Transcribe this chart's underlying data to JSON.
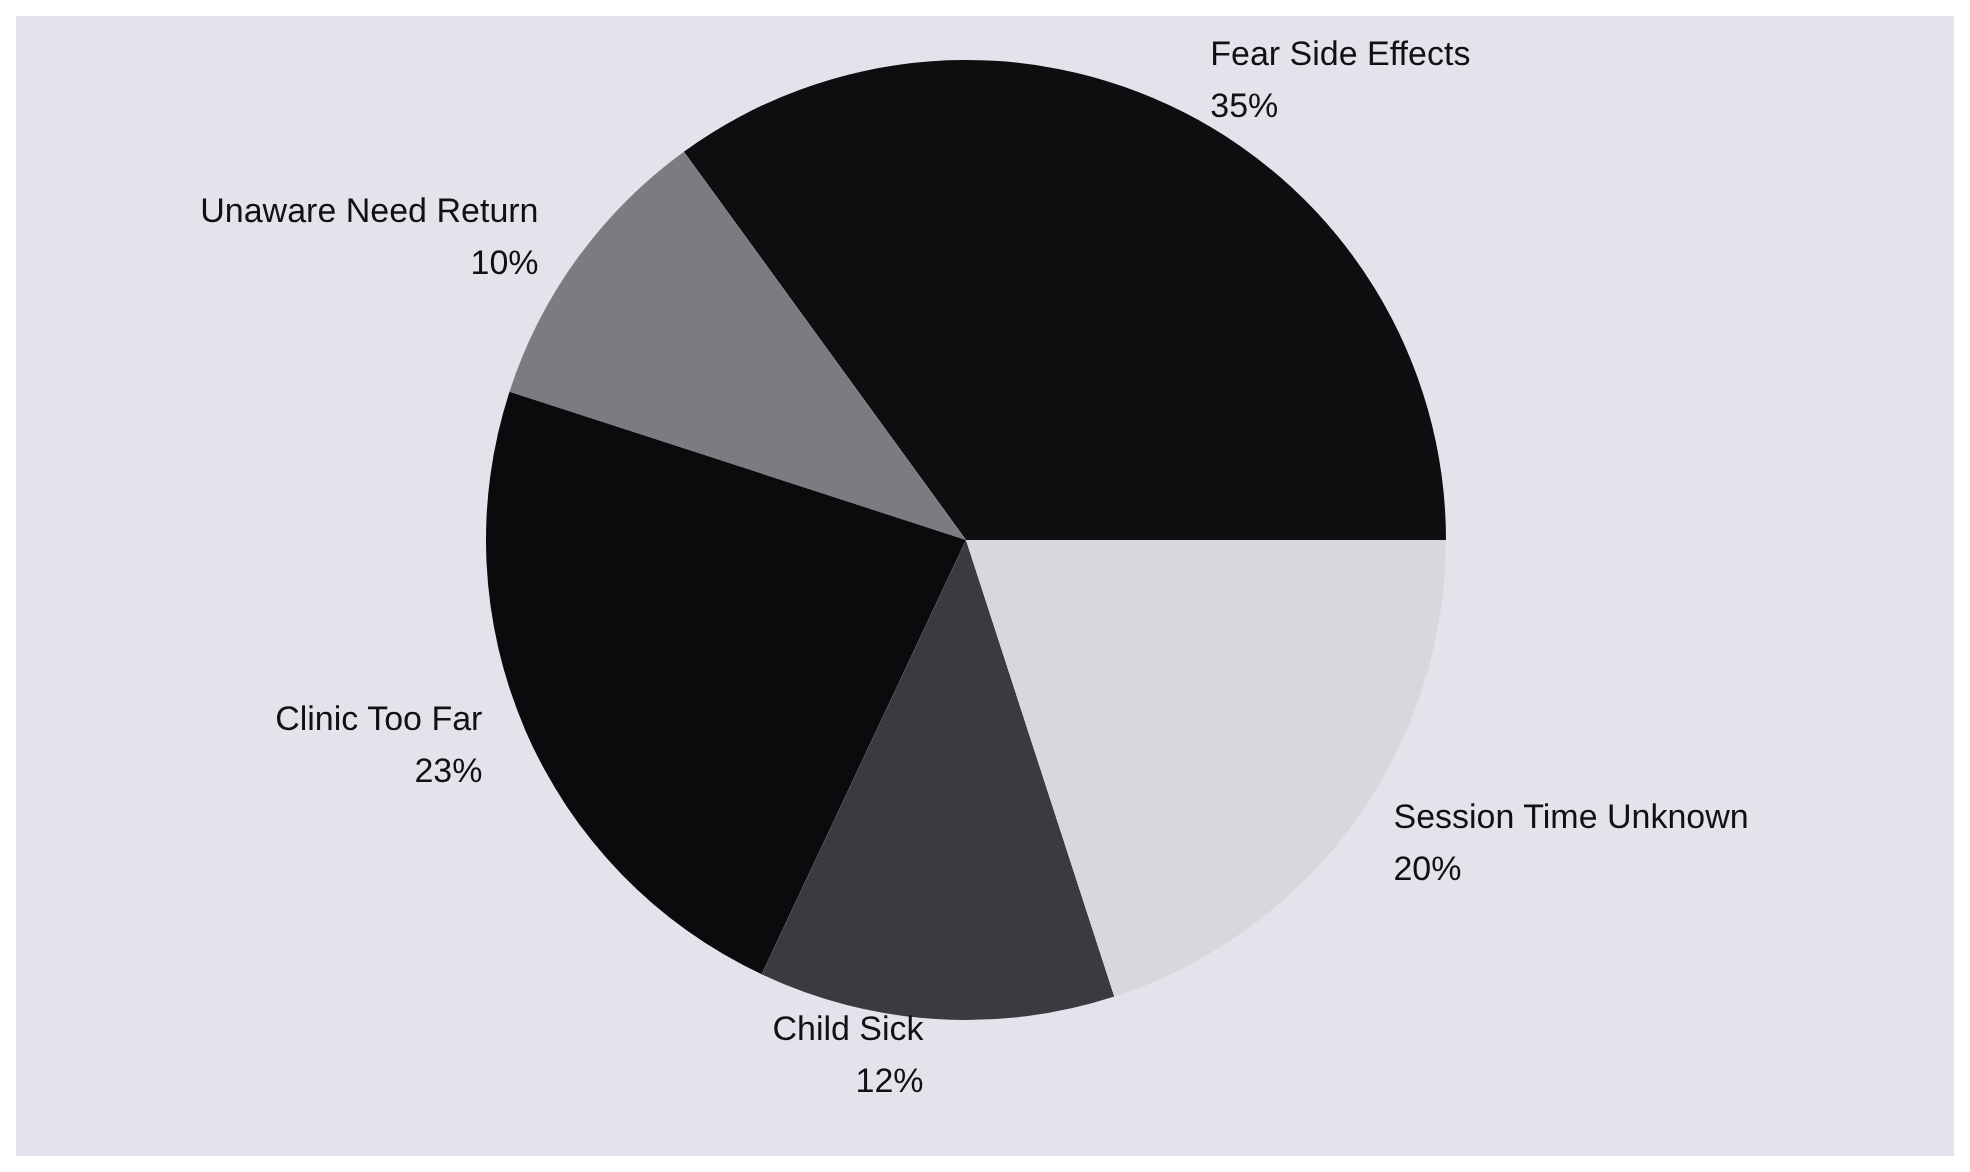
{
  "chart_data": {
    "type": "pie",
    "categories": [
      "Fear Side Effects",
      "Unaware Need Return",
      "Clinic Too Far",
      "Child Sick",
      "Session Time Unknown"
    ],
    "values": [
      35,
      10,
      23,
      12,
      20
    ],
    "colors": [
      "#0e0e10",
      "#7c7c80",
      "#0b0b0d",
      "#3a3a40",
      "#d8d8dc"
    ],
    "value_labels": [
      "35%",
      "10%",
      "23%",
      "12%",
      "20%"
    ],
    "legend": false
  }
}
